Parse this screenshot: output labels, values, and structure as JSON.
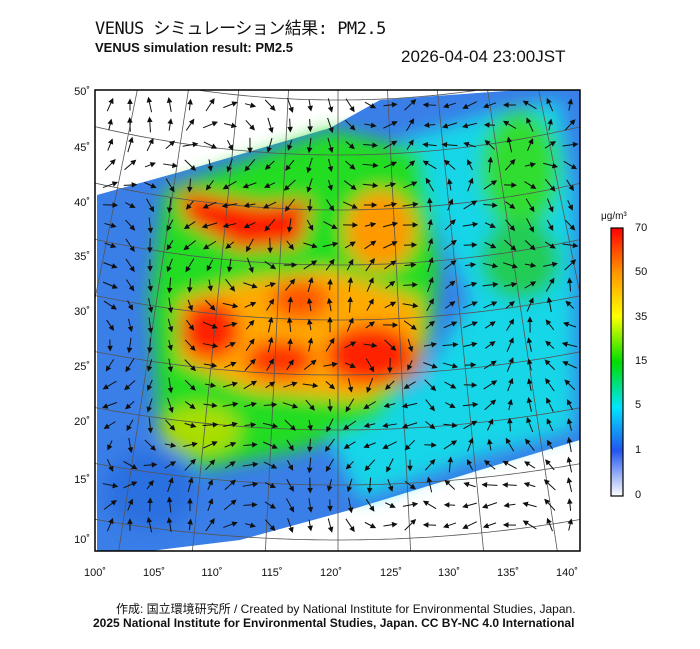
{
  "title_ja": "VENUS シミュレーション結果: PM2.5",
  "title_en": "VENUS simulation result: PM2.5",
  "datetime": "2026-04-04 23:00JST",
  "lat_labels": [
    "50˚",
    "45˚",
    "40˚",
    "35˚",
    "30˚",
    "25˚",
    "20˚",
    "15˚",
    "10˚"
  ],
  "lon_labels": [
    "100˚",
    "105˚",
    "110˚",
    "115˚",
    "120˚",
    "125˚",
    "130˚",
    "135˚",
    "140˚"
  ],
  "colorbar": {
    "unit": "μg/m³",
    "ticks": [
      "70",
      "50",
      "35",
      "15",
      "5",
      "1",
      "0"
    ],
    "colors": [
      "#ff0000",
      "#ff9900",
      "#ffff00",
      "#00dd00",
      "#00e5ff",
      "#2255ee",
      "#ffffff"
    ]
  },
  "footer": {
    "credit": "作成: 国立環境研究所 / Created by National Institute for Environmental Studies, Japan.",
    "license": "2025 National Institute for Environmental Studies, Japan. CC BY-NC 4.0 International"
  }
}
